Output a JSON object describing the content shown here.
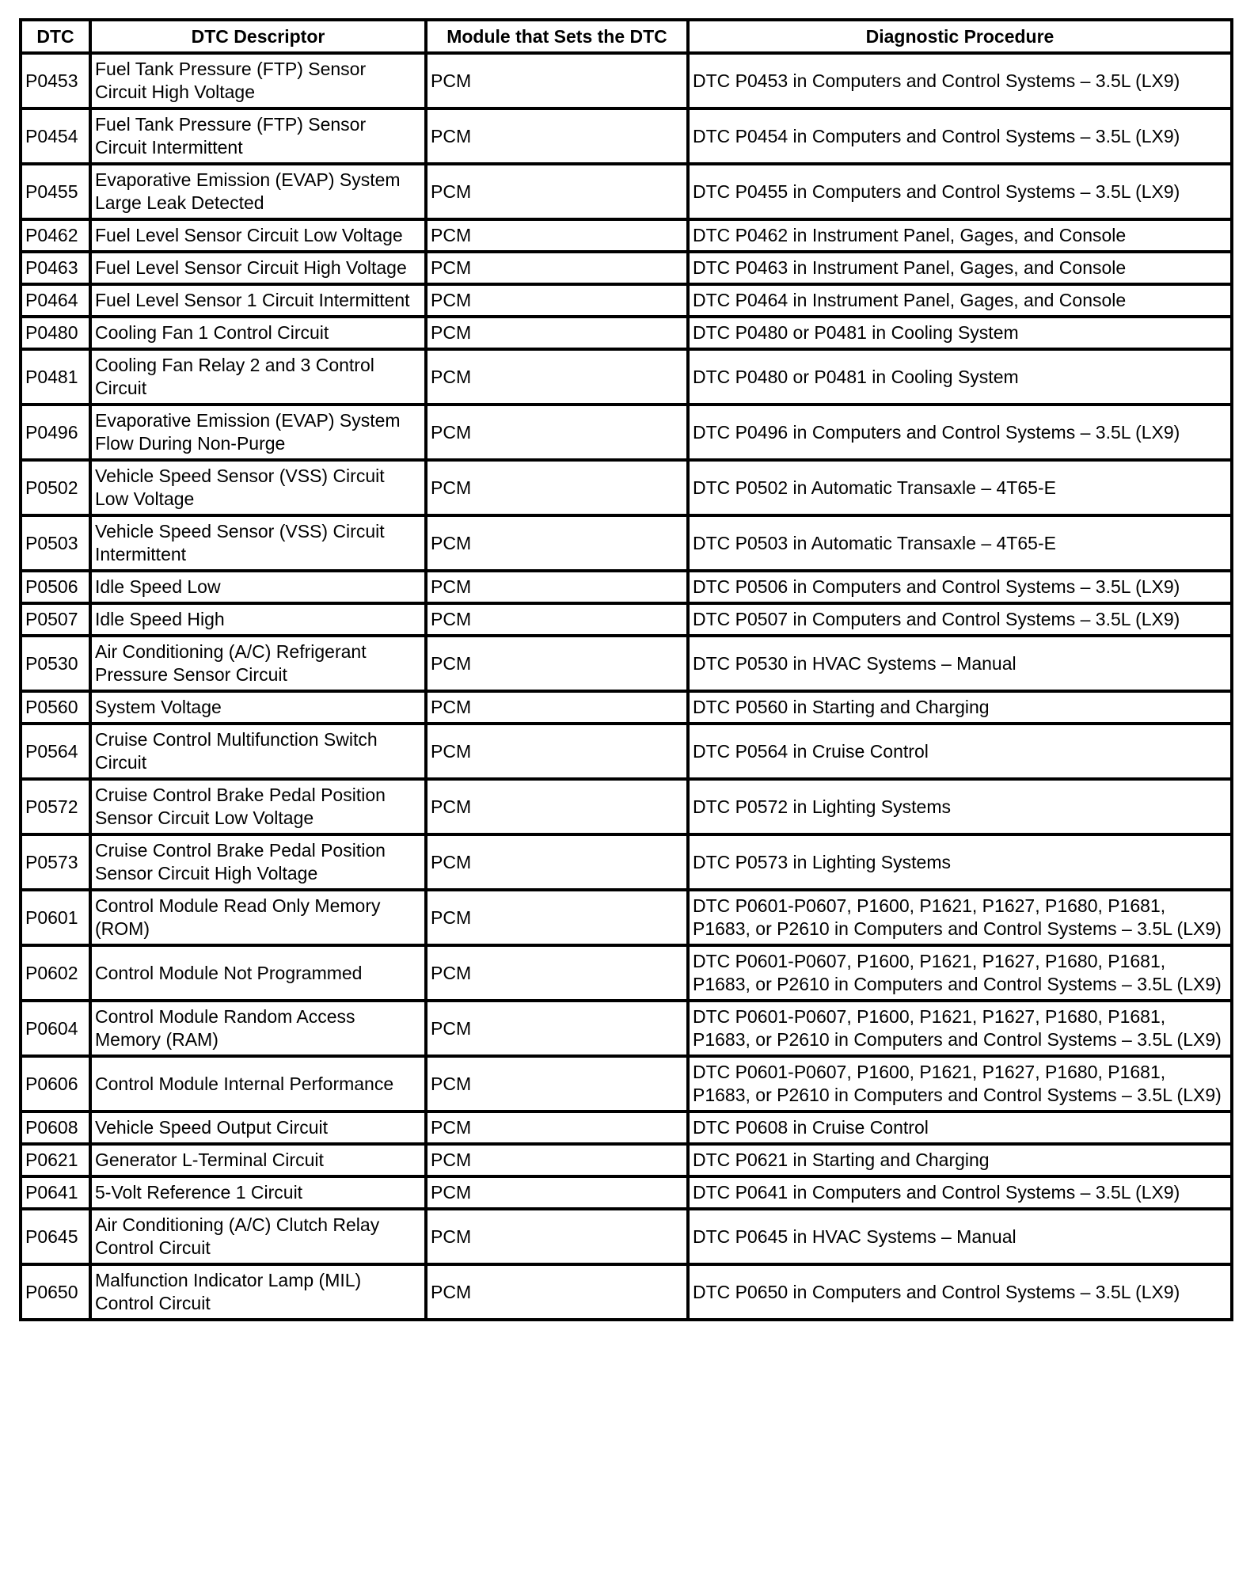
{
  "table": {
    "headers": [
      "DTC",
      "DTC Descriptor",
      "Module that Sets the DTC",
      "Diagnostic Procedure"
    ],
    "rows": [
      [
        "P0453",
        "Fuel Tank Pressure (FTP) Sensor Circuit High Voltage",
        "PCM",
        "DTC P0453 in Computers and Control Systems – 3.5L (LX9)"
      ],
      [
        "P0454",
        "Fuel Tank Pressure (FTP) Sensor Circuit Intermittent",
        "PCM",
        "DTC P0454 in Computers and Control Systems – 3.5L (LX9)"
      ],
      [
        "P0455",
        "Evaporative Emission (EVAP) System Large Leak Detected",
        "PCM",
        "DTC P0455 in Computers and Control Systems – 3.5L (LX9)"
      ],
      [
        "P0462",
        "Fuel Level Sensor Circuit Low Voltage",
        "PCM",
        "DTC P0462 in Instrument Panel, Gages, and Console"
      ],
      [
        "P0463",
        "Fuel Level Sensor Circuit High Voltage",
        "PCM",
        "DTC P0463 in Instrument Panel, Gages, and Console"
      ],
      [
        "P0464",
        "Fuel Level Sensor 1 Circuit Intermittent",
        "PCM",
        "DTC P0464 in Instrument Panel, Gages, and Console"
      ],
      [
        "P0480",
        "Cooling Fan 1 Control Circuit",
        "PCM",
        "DTC P0480 or P0481 in Cooling System"
      ],
      [
        "P0481",
        "Cooling Fan Relay 2 and 3 Control Circuit",
        "PCM",
        "DTC P0480 or P0481 in Cooling System"
      ],
      [
        "P0496",
        "Evaporative Emission (EVAP) System Flow During Non-Purge",
        "PCM",
        "DTC P0496 in Computers and Control Systems – 3.5L (LX9)"
      ],
      [
        "P0502",
        "Vehicle Speed Sensor  (VSS) Circuit Low Voltage",
        "PCM",
        "DTC P0502 in Automatic Transaxle – 4T65-E"
      ],
      [
        "P0503",
        "Vehicle Speed Sensor  (VSS) Circuit Intermittent",
        "PCM",
        "DTC P0503 in Automatic Transaxle – 4T65-E"
      ],
      [
        "P0506",
        "Idle Speed Low",
        "PCM",
        "DTC P0506 in Computers and Control Systems – 3.5L (LX9)"
      ],
      [
        "P0507",
        "Idle Speed High",
        "PCM",
        "DTC P0507 in Computers and Control Systems – 3.5L (LX9)"
      ],
      [
        "P0530",
        "Air Conditioning (A/C) Refrigerant Pressure Sensor Circuit",
        "PCM",
        "DTC P0530 in HVAC Systems – Manual"
      ],
      [
        "P0560",
        "System Voltage",
        "PCM",
        "DTC P0560 in Starting and Charging"
      ],
      [
        "P0564",
        "Cruise Control Multifunction Switch Circuit",
        "PCM",
        "DTC P0564 in Cruise Control"
      ],
      [
        "P0572",
        "Cruise Control Brake Pedal Position Sensor Circuit Low Voltage",
        "PCM",
        "DTC P0572 in Lighting Systems"
      ],
      [
        "P0573",
        "Cruise Control Brake Pedal Position Sensor Circuit High Voltage",
        "PCM",
        "DTC P0573 in Lighting Systems"
      ],
      [
        "P0601",
        "Control Module Read Only Memory (ROM)",
        "PCM",
        "DTC P0601-P0607, P1600, P1621, P1627, P1680, P1681, P1683, or P2610 in Computers and Control Systems – 3.5L (LX9)"
      ],
      [
        "P0602",
        "Control Module Not Programmed",
        "PCM",
        "DTC P0601-P0607, P1600, P1621, P1627, P1680, P1681, P1683, or P2610 in Computers and Control Systems – 3.5L (LX9)"
      ],
      [
        "P0604",
        "Control Module Random Access Memory (RAM)",
        "PCM",
        "DTC P0601-P0607, P1600, P1621, P1627, P1680, P1681, P1683, or P2610 in Computers and Control Systems – 3.5L (LX9)"
      ],
      [
        "P0606",
        "Control Module Internal Performance",
        "PCM",
        "DTC P0601-P0607, P1600, P1621, P1627, P1680, P1681, P1683, or P2610 in Computers and Control Systems – 3.5L (LX9)"
      ],
      [
        "P0608",
        "Vehicle Speed Output Circuit",
        "PCM",
        "DTC P0608 in Cruise Control"
      ],
      [
        "P0621",
        "Generator L-Terminal Circuit",
        "PCM",
        "DTC P0621 in Starting and Charging"
      ],
      [
        "P0641",
        "5-Volt Reference 1 Circuit",
        "PCM",
        "DTC P0641 in Computers and Control Systems – 3.5L (LX9)"
      ],
      [
        "P0645",
        "Air Conditioning (A/C) Clutch Relay Control Circuit",
        "PCM",
        "DTC P0645 in HVAC Systems – Manual"
      ],
      [
        "P0650",
        "Malfunction Indicator Lamp (MIL) Control Circuit",
        "PCM",
        "DTC P0650 in Computers and Control Systems – 3.5L (LX9)"
      ]
    ]
  }
}
